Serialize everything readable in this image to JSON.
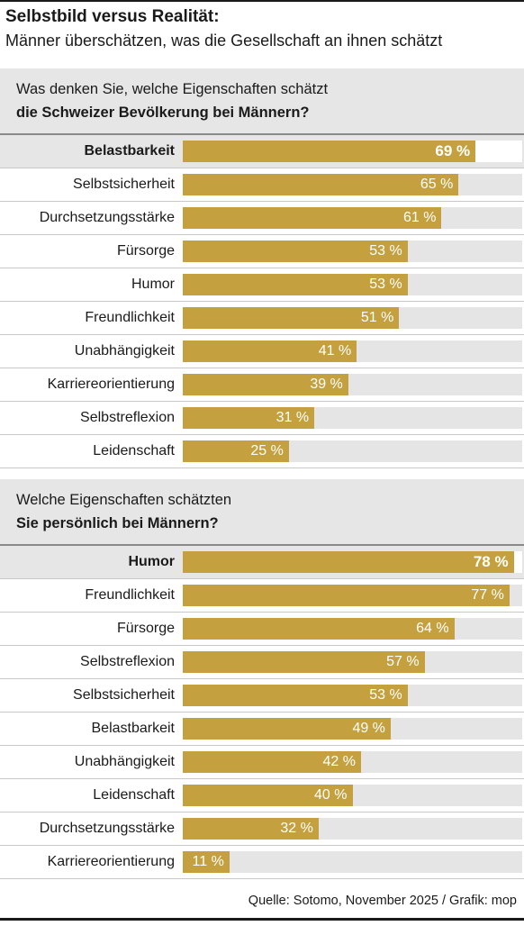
{
  "title": "Selbstbild versus Realität:",
  "subtitle": "Männer überschätzen, was die Gesellschaft an ihnen schätzt",
  "source": "Quelle: Sotomo, November 2025 / Grafik: mop",
  "colors": {
    "bar": "#c4a03f",
    "track": "#e5e5e5",
    "highlight_bg": "#e6e6e6"
  },
  "chart_data": [
    {
      "type": "bar",
      "orientation": "horizontal",
      "title_line1": "Was denken Sie, welche Eigenschaften schätzt",
      "title_line2": "die Schweizer Bevölkerung bei Männern?",
      "unit": "%",
      "xlim": [
        0,
        80
      ],
      "categories": [
        "Belastbarkeit",
        "Selbstsicherheit",
        "Durchsetzungsstärke",
        "Fürsorge",
        "Humor",
        "Freundlichkeit",
        "Unabhängigkeit",
        "Karriereorientierung",
        "Selbstreflexion",
        "Leidenschaft"
      ],
      "values": [
        69,
        65,
        61,
        53,
        53,
        51,
        41,
        39,
        31,
        25
      ],
      "value_labels": [
        "69 %",
        "65 %",
        "61 %",
        "53 %",
        "53 %",
        "51 %",
        "41 %",
        "39 %",
        "31 %",
        "25 %"
      ],
      "highlight_index": 0
    },
    {
      "type": "bar",
      "orientation": "horizontal",
      "title_line1": "Welche Eigenschaften schätzten",
      "title_line2": "Sie persönlich bei Männern?",
      "unit": "%",
      "xlim": [
        0,
        80
      ],
      "categories": [
        "Humor",
        "Freundlichkeit",
        "Fürsorge",
        "Selbstreflexion",
        "Selbstsicherheit",
        "Belastbarkeit",
        "Unabhängigkeit",
        "Leidenschaft",
        "Durchsetzungsstärke",
        "Karriereorientierung"
      ],
      "values": [
        78,
        77,
        64,
        57,
        53,
        49,
        42,
        40,
        32,
        11
      ],
      "value_labels": [
        "78 %",
        "77 %",
        "64 %",
        "57 %",
        "53 %",
        "49 %",
        "42 %",
        "40 %",
        "32 %",
        "11 %"
      ],
      "highlight_index": 0
    }
  ]
}
